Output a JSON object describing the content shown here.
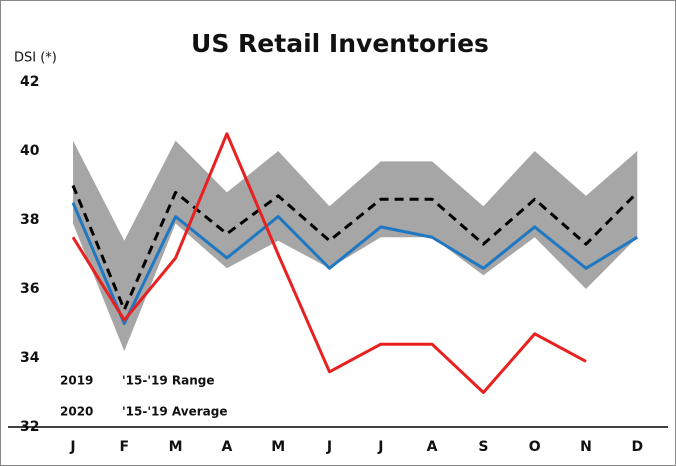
{
  "chart_data": {
    "type": "line",
    "title": "US Retail Inventories",
    "y_label": "DSI (*)",
    "categories": [
      "J",
      "F",
      "M",
      "A",
      "M",
      "J",
      "J",
      "A",
      "S",
      "O",
      "N",
      "D"
    ],
    "ylim": [
      32,
      42
    ],
    "yticks": [
      32,
      34,
      36,
      38,
      40,
      42
    ],
    "range": {
      "name": "'15-'19 Range",
      "color": "#a6a6a6",
      "upper": [
        40.3,
        37.4,
        40.3,
        38.8,
        40.0,
        38.4,
        39.7,
        39.7,
        38.4,
        40.0,
        38.7,
        40.0
      ],
      "lower": [
        37.9,
        34.2,
        37.9,
        36.6,
        37.4,
        36.6,
        37.5,
        37.5,
        36.4,
        37.5,
        36.0,
        37.5
      ]
    },
    "series": [
      {
        "name": "'15-'19 Average",
        "color": "#000000",
        "dash": true,
        "values": [
          39.0,
          35.4,
          38.8,
          37.6,
          38.7,
          37.4,
          38.6,
          38.6,
          37.3,
          38.6,
          37.3,
          38.8
        ]
      },
      {
        "name": "2019",
        "color": "#1f78c1",
        "values": [
          38.5,
          35.0,
          38.1,
          36.9,
          38.1,
          36.6,
          37.8,
          37.5,
          36.6,
          37.8,
          36.6,
          37.5
        ]
      },
      {
        "name": "2020",
        "color": "#e8201f",
        "values": [
          37.5,
          35.1,
          36.9,
          40.5,
          37.0,
          33.6,
          34.4,
          34.4,
          33.0,
          34.7,
          33.9,
          null
        ]
      }
    ]
  }
}
